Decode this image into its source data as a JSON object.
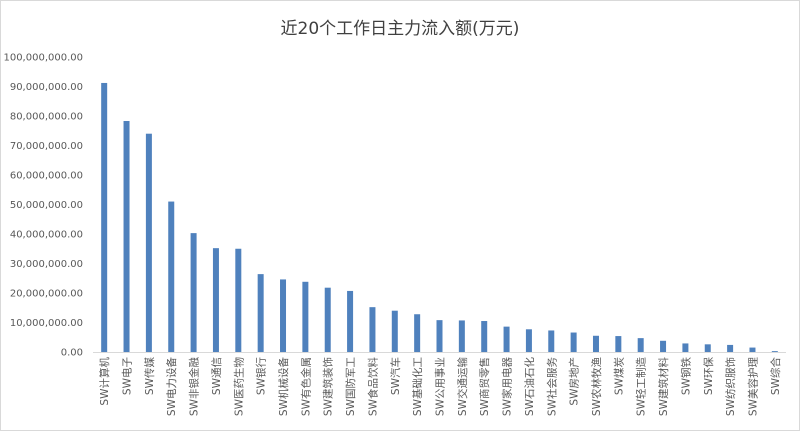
{
  "chart_data": {
    "type": "bar",
    "title": "近20个工作日主力流入额(万元)",
    "xlabel": "",
    "ylabel": "",
    "ylim": [
      0,
      100000000
    ],
    "ytick_step": 10000000,
    "ytick_labels": [
      "0.00",
      "10,000,000.00",
      "20,000,000.00",
      "30,000,000.00",
      "40,000,000.00",
      "50,000,000.00",
      "60,000,000.00",
      "70,000,000.00",
      "80,000,000.00",
      "90,000,000.00",
      "100,000,000.00"
    ],
    "grid": false,
    "legend": "none",
    "bar_color": "#4f81bd",
    "categories": [
      "SW计算机",
      "SW电子",
      "SW传媒",
      "SW电力设备",
      "SW非银金融",
      "SW通信",
      "SW医药生物",
      "SW银行",
      "SW机械设备",
      "SW有色金属",
      "SW建筑装饰",
      "SW国防军工",
      "SW食品饮料",
      "SW汽车",
      "SW基础化工",
      "SW公用事业",
      "SW交通运输",
      "SW商贸零售",
      "SW家用电器",
      "SW石油石化",
      "SW社会服务",
      "SW房地产",
      "SW农林牧渔",
      "SW煤炭",
      "SW轻工制造",
      "SW建筑材料",
      "SW钢铁",
      "SW环保",
      "SW纺织服饰",
      "SW美容护理",
      "SW综合"
    ],
    "values": [
      91200000,
      78300000,
      74000000,
      51000000,
      40300000,
      35200000,
      35000000,
      26400000,
      24600000,
      23800000,
      21800000,
      20700000,
      15200000,
      14000000,
      12800000,
      10800000,
      10700000,
      10500000,
      8600000,
      7700000,
      7300000,
      6600000,
      5500000,
      5400000,
      4700000,
      3800000,
      2900000,
      2600000,
      2400000,
      1500000,
      300000
    ]
  }
}
